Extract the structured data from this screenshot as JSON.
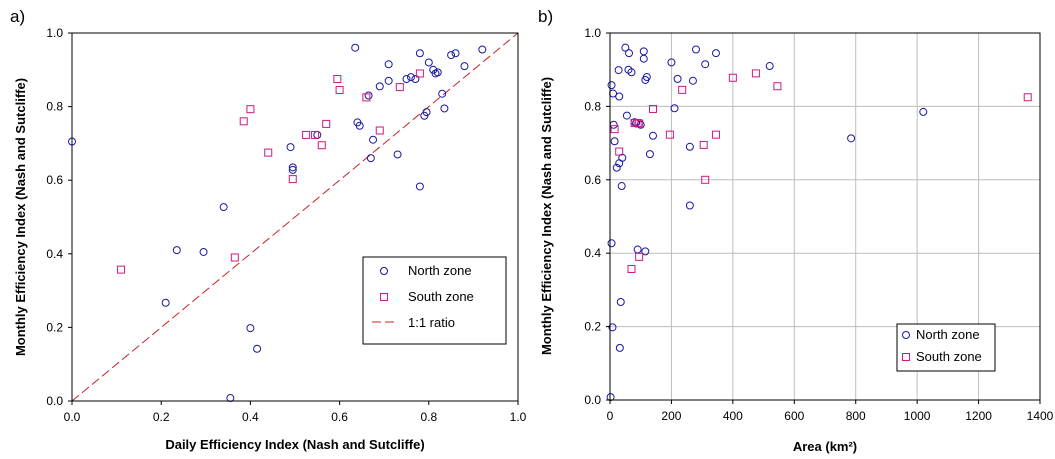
{
  "chart_data": [
    {
      "type": "scatter",
      "panel_label": "a)",
      "xlabel": "Daily Efficiency Index (Nash and Sutcliffe)",
      "ylabel": "Monthly Efficiency Index (Nash and Sutcliffe)",
      "xlim": [
        0,
        1
      ],
      "ylim": [
        0,
        1
      ],
      "x_ticks": [
        "0.0",
        "0.2",
        "0.4",
        "0.6",
        "0.8",
        "1.0"
      ],
      "y_ticks": [
        "0.0",
        "0.2",
        "0.4",
        "0.6",
        "0.8",
        "1.0"
      ],
      "grid": false,
      "legend_position": "lower-right",
      "series": [
        {
          "name": "North zone",
          "marker": "circle",
          "color": "#1a1aa0",
          "points": [
            [
              0.0,
              0.705
            ],
            [
              0.21,
              0.267
            ],
            [
              0.235,
              0.41
            ],
            [
              0.295,
              0.405
            ],
            [
              0.34,
              0.527
            ],
            [
              0.355,
              0.008
            ],
            [
              0.4,
              0.198
            ],
            [
              0.415,
              0.142
            ],
            [
              0.49,
              0.69
            ],
            [
              0.495,
              0.635
            ],
            [
              0.495,
              0.628
            ],
            [
              0.55,
              0.723
            ],
            [
              0.635,
              0.96
            ],
            [
              0.64,
              0.757
            ],
            [
              0.645,
              0.748
            ],
            [
              0.665,
              0.83
            ],
            [
              0.67,
              0.66
            ],
            [
              0.675,
              0.71
            ],
            [
              0.69,
              0.855
            ],
            [
              0.71,
              0.915
            ],
            [
              0.71,
              0.87
            ],
            [
              0.73,
              0.67
            ],
            [
              0.75,
              0.875
            ],
            [
              0.76,
              0.88
            ],
            [
              0.77,
              0.875
            ],
            [
              0.78,
              0.945
            ],
            [
              0.78,
              0.583
            ],
            [
              0.79,
              0.775
            ],
            [
              0.795,
              0.785
            ],
            [
              0.8,
              0.92
            ],
            [
              0.81,
              0.9
            ],
            [
              0.815,
              0.89
            ],
            [
              0.82,
              0.893
            ],
            [
              0.83,
              0.835
            ],
            [
              0.835,
              0.795
            ],
            [
              0.85,
              0.94
            ],
            [
              0.86,
              0.945
            ],
            [
              0.88,
              0.91
            ],
            [
              0.92,
              0.955
            ]
          ]
        },
        {
          "name": "South zone",
          "marker": "square",
          "color": "#cc1a80",
          "points": [
            [
              0.11,
              0.357
            ],
            [
              0.365,
              0.39
            ],
            [
              0.385,
              0.76
            ],
            [
              0.4,
              0.793
            ],
            [
              0.44,
              0.675
            ],
            [
              0.495,
              0.603
            ],
            [
              0.525,
              0.723
            ],
            [
              0.545,
              0.723
            ],
            [
              0.56,
              0.695
            ],
            [
              0.57,
              0.753
            ],
            [
              0.595,
              0.875
            ],
            [
              0.6,
              0.845
            ],
            [
              0.66,
              0.825
            ],
            [
              0.69,
              0.735
            ],
            [
              0.735,
              0.853
            ],
            [
              0.78,
              0.89
            ]
          ]
        },
        {
          "name": "1:1 ratio",
          "marker": "line",
          "color": "#cc2222",
          "points": [
            [
              0,
              0
            ],
            [
              1,
              1
            ]
          ]
        }
      ]
    },
    {
      "type": "scatter",
      "panel_label": "b)",
      "xlabel": "Area (km²)",
      "ylabel": "Monthly Efficiency Index (Nash and Sutcliffe)",
      "xlim": [
        0,
        1400
      ],
      "ylim": [
        0,
        1
      ],
      "x_ticks": [
        "0",
        "200",
        "400",
        "600",
        "800",
        "1000",
        "1200",
        "1400"
      ],
      "y_ticks": [
        "0.0",
        "0.2",
        "0.4",
        "0.6",
        "0.8",
        "1.0"
      ],
      "grid": true,
      "legend_position": "lower-right",
      "series": [
        {
          "name": "North zone",
          "marker": "circle",
          "color": "#1a1aa0",
          "points": [
            [
              2,
              0.008
            ],
            [
              5,
              0.427
            ],
            [
              8,
              0.198
            ],
            [
              5,
              0.858
            ],
            [
              10,
              0.835
            ],
            [
              12,
              0.75
            ],
            [
              15,
              0.705
            ],
            [
              22,
              0.633
            ],
            [
              28,
              0.899
            ],
            [
              30,
              0.827
            ],
            [
              30,
              0.645
            ],
            [
              32,
              0.142
            ],
            [
              35,
              0.267
            ],
            [
              38,
              0.583
            ],
            [
              40,
              0.66
            ],
            [
              50,
              0.96
            ],
            [
              55,
              0.775
            ],
            [
              60,
              0.9
            ],
            [
              62,
              0.945
            ],
            [
              70,
              0.893
            ],
            [
              80,
              0.757
            ],
            [
              85,
              0.755
            ],
            [
              90,
              0.41
            ],
            [
              100,
              0.75
            ],
            [
              110,
              0.95
            ],
            [
              110,
              0.93
            ],
            [
              115,
              0.405
            ],
            [
              115,
              0.872
            ],
            [
              120,
              0.88
            ],
            [
              130,
              0.67
            ],
            [
              140,
              0.72
            ],
            [
              200,
              0.92
            ],
            [
              210,
              0.795
            ],
            [
              220,
              0.875
            ],
            [
              260,
              0.69
            ],
            [
              260,
              0.53
            ],
            [
              270,
              0.87
            ],
            [
              280,
              0.955
            ],
            [
              310,
              0.915
            ],
            [
              345,
              0.945
            ],
            [
              520,
              0.91
            ],
            [
              785,
              0.713
            ],
            [
              1020,
              0.785
            ]
          ]
        },
        {
          "name": "South zone",
          "marker": "square",
          "color": "#cc1a80",
          "points": [
            [
              15,
              0.738
            ],
            [
              30,
              0.677
            ],
            [
              70,
              0.357
            ],
            [
              80,
              0.755
            ],
            [
              90,
              0.755
            ],
            [
              95,
              0.753
            ],
            [
              95,
              0.39
            ],
            [
              140,
              0.793
            ],
            [
              195,
              0.723
            ],
            [
              235,
              0.845
            ],
            [
              305,
              0.695
            ],
            [
              310,
              0.6
            ],
            [
              345,
              0.723
            ],
            [
              400,
              0.878
            ],
            [
              475,
              0.89
            ],
            [
              545,
              0.855
            ],
            [
              1360,
              0.825
            ]
          ]
        }
      ]
    }
  ]
}
